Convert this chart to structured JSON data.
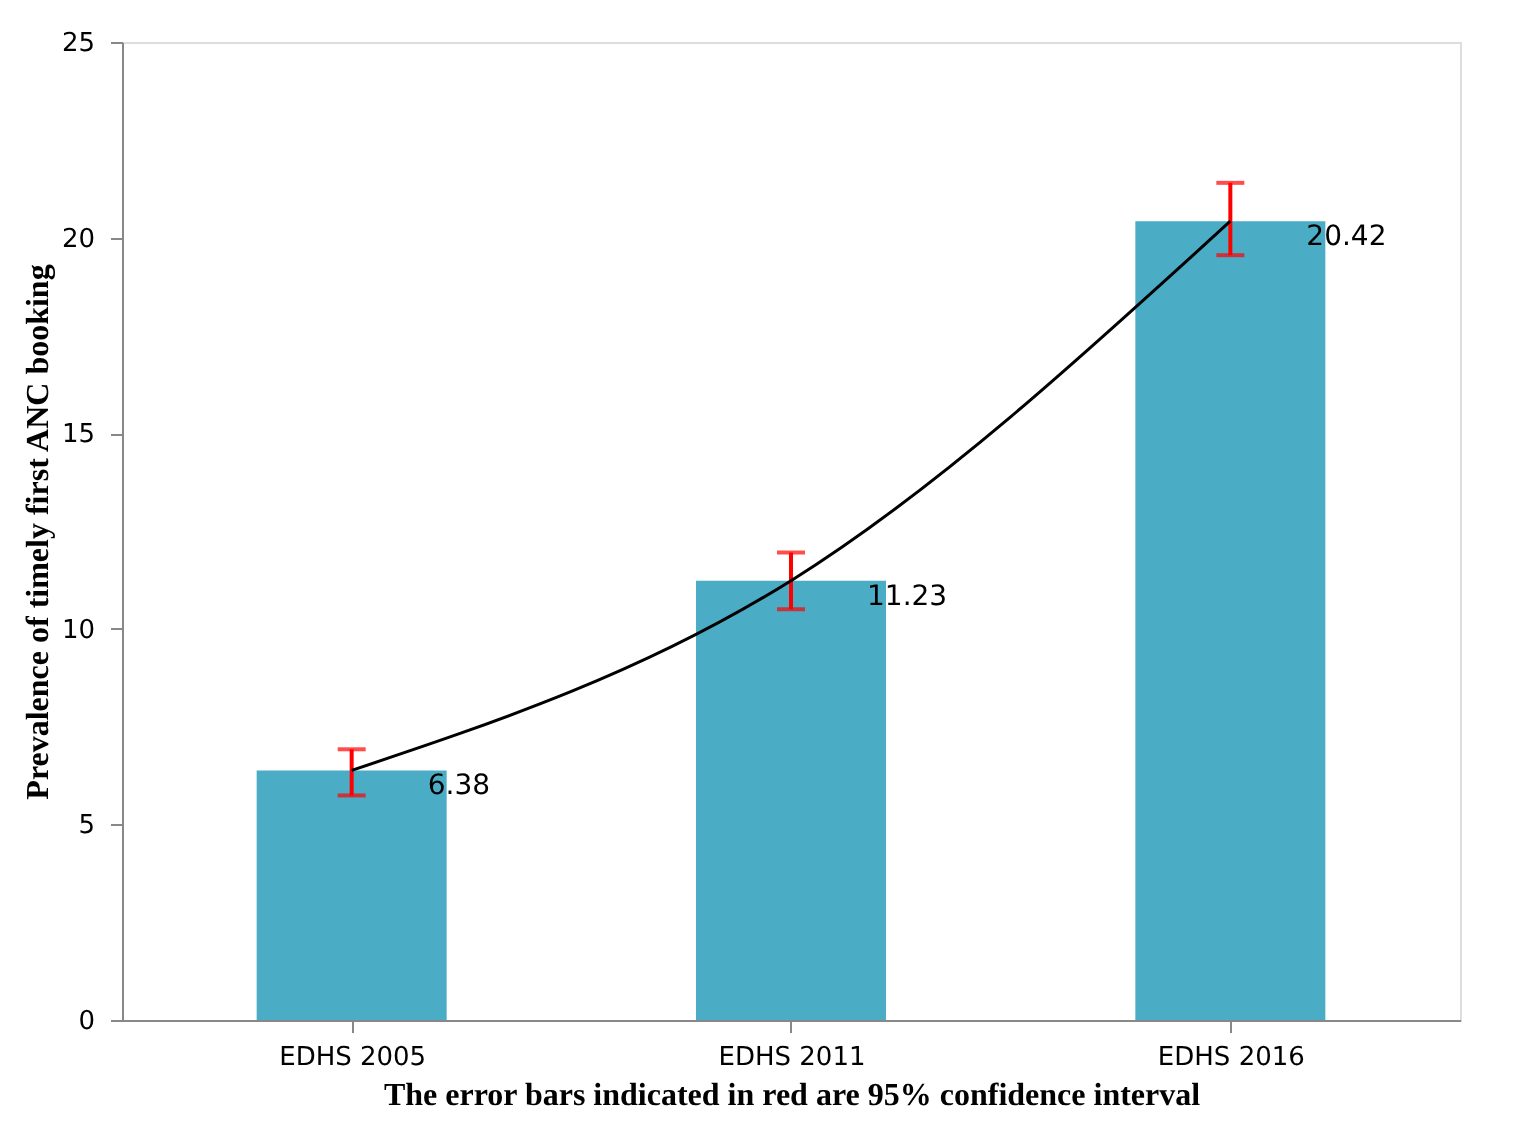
{
  "chart_data": {
    "type": "bar",
    "xlabel": "The error bars indicated in red are 95% confidence interval",
    "ylabel": "Prevalence of timely first ANC booking",
    "categories": [
      "EDHS 2005",
      "EDHS 2011",
      "EDHS 2016"
    ],
    "series": [
      {
        "color": "#4bacc6",
        "values": [
          6.38,
          11.23,
          20.42
        ],
        "value_labels": [
          "6.38",
          "11.23",
          "20.42"
        ],
        "errors": [
          [
            5.74,
            6.92
          ],
          [
            10.5,
            11.95
          ],
          [
            19.55,
            21.4
          ]
        ]
      },
      {
        "type": "line",
        "color": "#000000",
        "values": [
          6.38,
          11.23,
          20.42
        ]
      }
    ],
    "ylim": [
      0,
      25
    ],
    "yticks": [
      0,
      5,
      10,
      15,
      20,
      25
    ],
    "grid": false
  }
}
